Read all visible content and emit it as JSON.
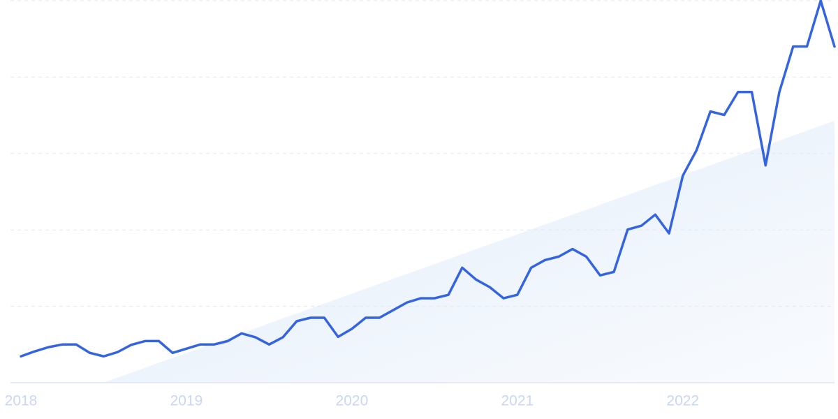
{
  "chart_data": {
    "type": "line",
    "categories": [
      "2018",
      null,
      null,
      null,
      null,
      null,
      null,
      null,
      null,
      null,
      null,
      null,
      "2019",
      null,
      null,
      null,
      null,
      null,
      null,
      null,
      null,
      null,
      null,
      null,
      "2020",
      null,
      null,
      null,
      null,
      null,
      null,
      null,
      null,
      null,
      null,
      null,
      "2021",
      null,
      null,
      null,
      null,
      null,
      null,
      null,
      null,
      null,
      null,
      null,
      "2022",
      null,
      null,
      null,
      null,
      null,
      null,
      null,
      null,
      null,
      null,
      null
    ],
    "values": [
      6.9,
      8.2,
      9.3,
      10.0,
      10.0,
      7.8,
      6.9,
      8.0,
      9.9,
      10.9,
      10.9,
      7.8,
      8.9,
      10.0,
      10.0,
      10.9,
      12.9,
      11.9,
      10.0,
      11.9,
      16.1,
      17.0,
      17.0,
      12.0,
      14.1,
      17.0,
      17.0,
      19.0,
      21.0,
      22.1,
      22.1,
      23.0,
      30.1,
      27.0,
      25.0,
      22.1,
      23.0,
      30.1,
      32.1,
      33.0,
      35.0,
      33.0,
      28.1,
      29.0,
      40.1,
      41.1,
      44.0,
      39.1,
      54.2,
      60.9,
      71.0,
      70.1,
      76.1,
      76.1,
      56.9,
      76.1,
      88.0,
      88.0,
      100,
      88.0
    ],
    "color": "#3564e0",
    "ylim": [
      0,
      100
    ],
    "yticks": [
      0,
      20,
      40,
      60,
      80,
      100
    ],
    "grid": true
  }
}
